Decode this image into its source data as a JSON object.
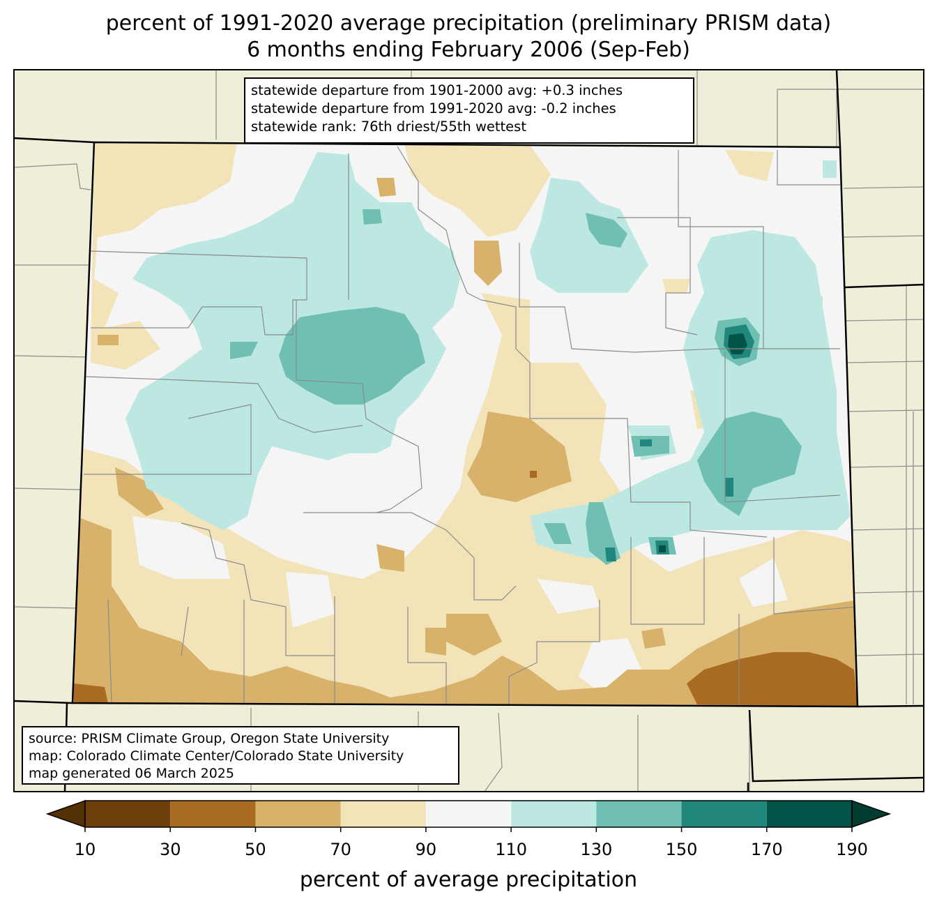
{
  "title_line1": "percent of 1991-2020 average precipitation (preliminary PRISM data)",
  "title_line2": "6 months ending February 2006 (Sep-Feb)",
  "stats": [
    "statewide departure from 1901-2000 avg: +0.3 inches",
    "statewide departure from 1991-2020 avg: -0.2 inches",
    "statewide rank: 76th driest/55th wettest"
  ],
  "credits": [
    "source: PRISM Climate Group, Oregon State University",
    "map: Colorado Climate Center/Colorado State University",
    "map generated 06 March 2025"
  ],
  "colorbar": {
    "label": "percent of average precipitation",
    "ticks": [
      "10",
      "30",
      "50",
      "70",
      "90",
      "110",
      "130",
      "150",
      "170",
      "190"
    ],
    "under_color": "#543005",
    "over_color": "#003c30",
    "bin_colors": [
      "#6f3f0b",
      "#a96a22",
      "#d8b26a",
      "#f3e3b8",
      "#f4f5f4",
      "#bde7e1",
      "#6fc0b2",
      "#21877c",
      "#015247"
    ]
  },
  "colors": {
    "background_land": "#efeed9",
    "state_border": "#000000",
    "county_border": "#8a8a8a"
  }
}
